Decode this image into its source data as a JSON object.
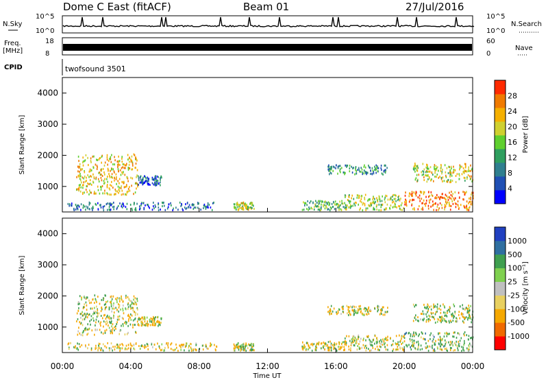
{
  "header": {
    "title": "Dome C East (fitACF)",
    "beam": "Beam 01",
    "date": "27/Jul/2016"
  },
  "strips": {
    "nsky_label": "N.Sky",
    "nsky_ticks": [
      "10^5",
      "10^0"
    ],
    "nsearch_label": "N.Search",
    "nsearch_ticks": [
      "10^5",
      "10^0"
    ],
    "freq_label_line1": "Freq.",
    "freq_label_line2": "[MHz]",
    "freq_ticks": [
      "18",
      "8"
    ],
    "nave_label": "Nave",
    "nave_ticks": [
      "60",
      "0"
    ],
    "cpid_label": "CPID",
    "cpid_text": "twofsound 3501"
  },
  "chart_data": [
    {
      "type": "heatmap",
      "ylabel": "Slant Range [km]",
      "xlabel": "Time UT",
      "ylim": [
        180,
        4500
      ],
      "xlim": [
        0,
        24
      ],
      "yticks": [
        "4000",
        "3000",
        "2000",
        "1000"
      ],
      "xticks": [
        "00:00",
        "04:00",
        "08:00",
        "12:00",
        "16:00",
        "20:00",
        "00:00"
      ],
      "colorbar": {
        "label": "Power [dB]",
        "ticks": [
          "28",
          "24",
          "20",
          "16",
          "12",
          "8",
          "4"
        ],
        "colors": [
          "#0000ff",
          "#1f4fb4",
          "#2f7f8f",
          "#2f9f5f",
          "#5fcf2f",
          "#cfd030",
          "#f5b000",
          "#f07a00",
          "#ff2a00"
        ]
      },
      "regions": [
        {
          "t0": 0.8,
          "t1": 4.4,
          "r0": 700,
          "r1": 2000,
          "value": 24
        },
        {
          "t0": 4.4,
          "t1": 5.8,
          "r0": 1000,
          "r1": 1300,
          "value": 8
        },
        {
          "t0": 0.2,
          "t1": 9.0,
          "r0": 200,
          "r1": 450,
          "value": 8
        },
        {
          "t0": 10.0,
          "t1": 11.2,
          "r0": 200,
          "r1": 450,
          "value": 22
        },
        {
          "t0": 14.0,
          "t1": 16.5,
          "r0": 200,
          "r1": 500,
          "value": 16
        },
        {
          "t0": 15.5,
          "t1": 19.0,
          "r0": 1350,
          "r1": 1650,
          "value": 12
        },
        {
          "t0": 16.5,
          "t1": 20.0,
          "r0": 200,
          "r1": 700,
          "value": 20
        },
        {
          "t0": 20.0,
          "t1": 24.0,
          "r0": 200,
          "r1": 800,
          "value": 30
        },
        {
          "t0": 20.5,
          "t1": 24.0,
          "r0": 1100,
          "r1": 1700,
          "value": 22
        }
      ]
    },
    {
      "type": "heatmap",
      "ylabel": "Slant Range [km]",
      "xlabel": "Time UT",
      "ylim": [
        180,
        4500
      ],
      "xlim": [
        0,
        24
      ],
      "yticks": [
        "4000",
        "3000",
        "2000",
        "1000"
      ],
      "xticks": [
        "00:00",
        "04:00",
        "08:00",
        "12:00",
        "16:00",
        "20:00",
        "00:00"
      ],
      "colorbar": {
        "label": "Velocity [m s⁻¹]",
        "ticks": [
          "1000",
          "500",
          "100",
          "25",
          "-25",
          "-100",
          "-500",
          "-1000"
        ],
        "colors": [
          "#ff0000",
          "#f06a00",
          "#f5a800",
          "#e8d060",
          "#c0c0c0",
          "#7fd04f",
          "#3f9f4f",
          "#2f6fa0",
          "#2040c0"
        ]
      },
      "regions": [
        {
          "t0": 0.8,
          "t1": 4.4,
          "r0": 700,
          "r1": 2000,
          "value": 0
        },
        {
          "t0": 4.4,
          "t1": 5.8,
          "r0": 1000,
          "r1": 1300,
          "value": -100
        },
        {
          "t0": 0.2,
          "t1": 9.0,
          "r0": 200,
          "r1": 450,
          "value": -100
        },
        {
          "t0": 10.0,
          "t1": 11.2,
          "r0": 200,
          "r1": 450,
          "value": 50
        },
        {
          "t0": 14.0,
          "t1": 16.5,
          "r0": 200,
          "r1": 500,
          "value": -100
        },
        {
          "t0": 15.5,
          "t1": 19.0,
          "r0": 1350,
          "r1": 1650,
          "value": -100
        },
        {
          "t0": 16.5,
          "t1": 20.0,
          "r0": 200,
          "r1": 700,
          "value": -100
        },
        {
          "t0": 20.0,
          "t1": 24.0,
          "r0": 200,
          "r1": 800,
          "value": 200
        },
        {
          "t0": 20.5,
          "t1": 24.0,
          "r0": 1100,
          "r1": 1700,
          "value": 100
        }
      ]
    }
  ]
}
